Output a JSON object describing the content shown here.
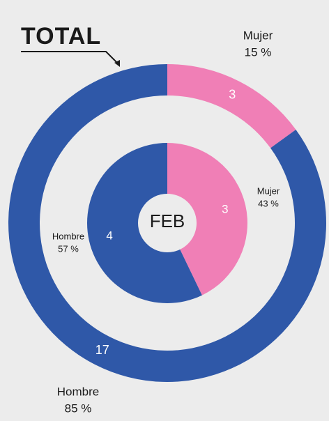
{
  "chart_data": {
    "type": "donut",
    "title": "TOTAL",
    "center_label": "FEB",
    "colors": [
      "#f07fb6",
      "#2f58a8"
    ],
    "rings": [
      {
        "categories": [
          "Mujer",
          "Hombre"
        ],
        "values": [
          3,
          17
        ],
        "percents": [
          15,
          85
        ],
        "percent_labels": [
          "15 %",
          "85 %"
        ]
      },
      {
        "categories": [
          "Mujer",
          "Hombre"
        ],
        "values": [
          3,
          4
        ],
        "percents": [
          43,
          57
        ],
        "percent_labels": [
          "43 %",
          "57 %"
        ]
      }
    ]
  }
}
